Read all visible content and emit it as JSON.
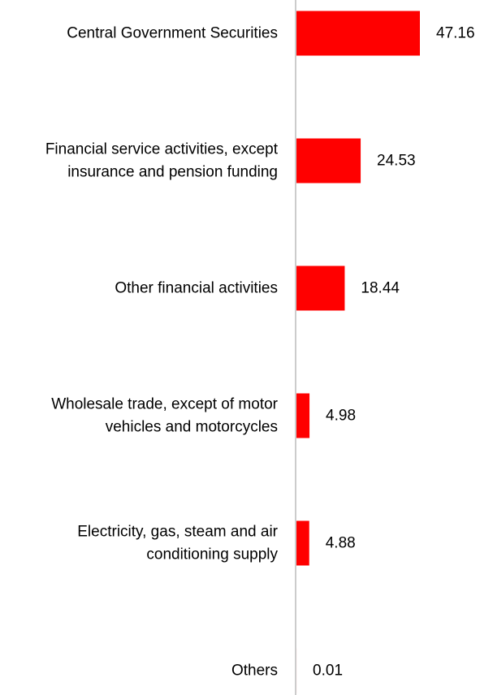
{
  "chart_data": {
    "type": "bar",
    "orientation": "horizontal",
    "categories": [
      [
        "Central Government Securities"
      ],
      [
        "Financial service activities, except",
        "insurance and pension funding"
      ],
      [
        "Other financial activities"
      ],
      [
        "Wholesale trade, except of motor",
        "vehicles and motorcycles"
      ],
      [
        "Electricity, gas, steam and air",
        "conditioning supply"
      ],
      [
        "Others"
      ]
    ],
    "values": [
      47.16,
      24.53,
      18.44,
      4.98,
      4.88,
      0.01
    ],
    "value_labels": [
      "47.16",
      "24.53",
      "18.44",
      "4.98",
      "4.88",
      "0.01"
    ],
    "title": "",
    "xlabel": "",
    "ylabel": "",
    "xlim": [
      0,
      50
    ],
    "grid": false,
    "legend": "none",
    "bar_color": "#ff0000",
    "axis_color": "#cccccc"
  }
}
